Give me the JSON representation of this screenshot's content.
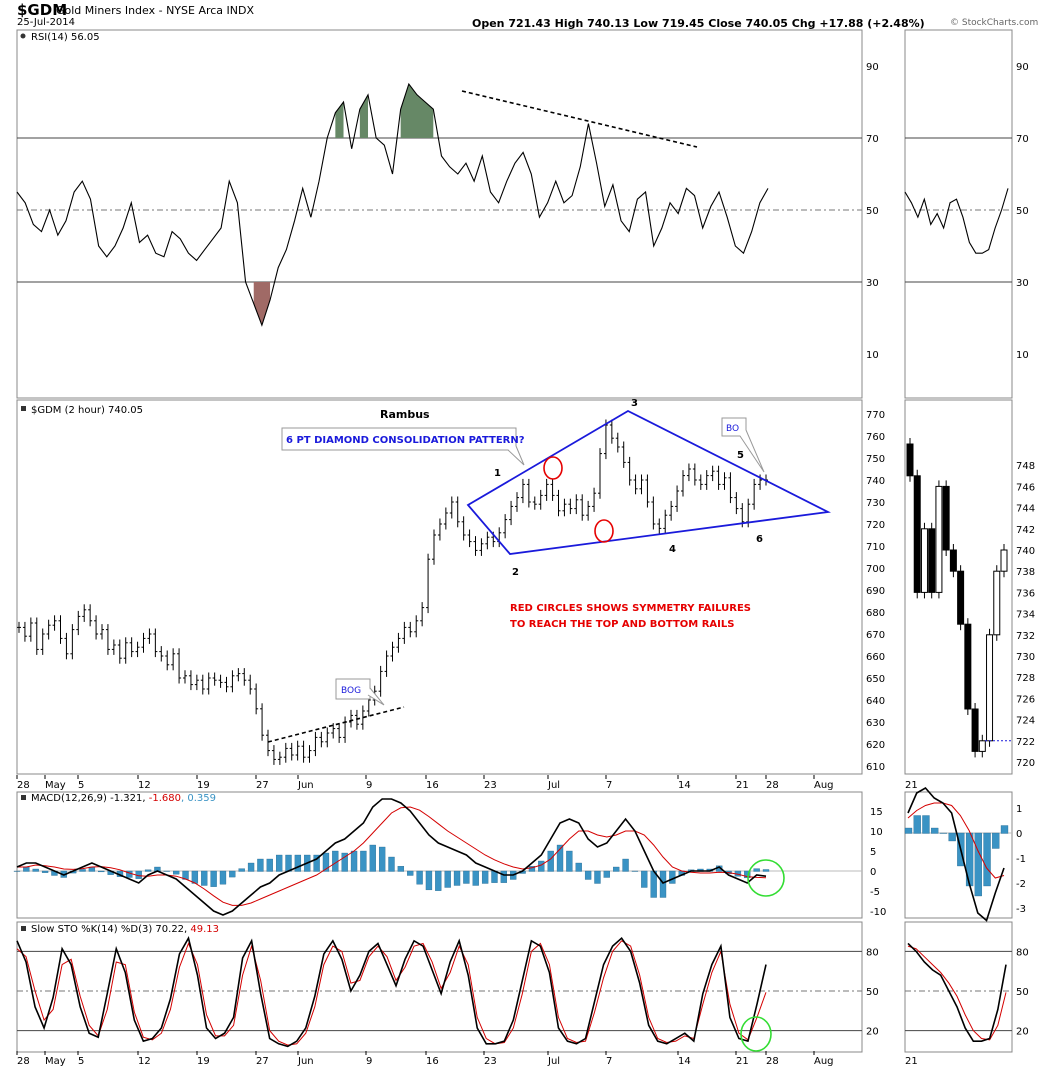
{
  "header": {
    "symbol": "$GDM",
    "name": "Gold Miners Index - NYSE Arca INDX",
    "date": "25-Jul-2014",
    "ohlc": "Open 721.43   High 740.13   Low 719.45   Close 740.05   Chg +17.88 (+2.48%)",
    "watermark": "© StockCharts.com"
  },
  "chart_data": {
    "type": "line",
    "x_ticks": [
      "28",
      "May",
      "5",
      "12",
      "19",
      "27",
      "Jun",
      "9",
      "16",
      "23",
      "Jul",
      "7",
      "14",
      "21",
      "28",
      "Aug"
    ],
    "x_ticks_right": [
      "21"
    ],
    "rsi": {
      "label": "RSI(14) 56.05",
      "y_ticks": [
        90,
        70,
        50,
        30,
        10
      ],
      "values": [
        55,
        52,
        46,
        44,
        50,
        43,
        47,
        55,
        58,
        53,
        40,
        37,
        40,
        45,
        52,
        41,
        43,
        38,
        37,
        44,
        42,
        38,
        36,
        39,
        42,
        45,
        58,
        52,
        30,
        24,
        18,
        25,
        34,
        39,
        47,
        56,
        48,
        58,
        70,
        77,
        80,
        67,
        78,
        82,
        70,
        68,
        60,
        78,
        85,
        82,
        80,
        78,
        65,
        62,
        60,
        63,
        58,
        65,
        55,
        52,
        58,
        63,
        66,
        60,
        48,
        52,
        58,
        52,
        54,
        62,
        74,
        63,
        51,
        57,
        47,
        44,
        53,
        55,
        40,
        45,
        52,
        49,
        56,
        54,
        45,
        51,
        55,
        48,
        40,
        38,
        44,
        52,
        56
      ],
      "right_values": [
        55,
        52,
        48,
        53,
        46,
        49,
        45,
        52,
        53,
        48,
        41,
        38,
        38,
        39,
        45,
        50,
        56
      ]
    },
    "price": {
      "label": "$GDM (2 hour) 740.05",
      "y_ticks": [
        770,
        760,
        750,
        740,
        730,
        720,
        710,
        700,
        690,
        680,
        670,
        660,
        650,
        640,
        630,
        620,
        610
      ],
      "close": [
        673,
        669,
        675,
        663,
        670,
        674,
        676,
        668,
        661,
        672,
        678,
        681,
        676,
        670,
        672,
        663,
        665,
        659,
        666,
        662,
        664,
        668,
        670,
        662,
        660,
        656,
        661,
        650,
        651,
        647,
        649,
        645,
        650,
        649,
        648,
        646,
        651,
        652,
        649,
        645,
        636,
        624,
        617,
        613,
        614,
        618,
        615,
        619,
        614,
        617,
        623,
        621,
        625,
        627,
        623,
        630,
        633,
        629,
        635,
        640,
        644,
        653,
        660,
        664,
        668,
        673,
        671,
        676,
        682,
        704,
        715,
        720,
        725,
        730,
        721,
        715,
        712,
        708,
        711,
        714,
        712,
        716,
        722,
        728,
        732,
        738,
        730,
        729,
        733,
        738,
        733,
        726,
        729,
        727,
        731,
        724,
        728,
        734,
        752,
        765,
        759,
        755,
        748,
        740,
        736,
        740,
        730,
        720,
        718,
        724,
        728,
        735,
        742,
        745,
        740,
        738,
        742,
        744,
        738,
        741,
        732,
        727,
        721,
        729,
        738,
        740,
        740
      ],
      "right_values": [
        747,
        736,
        742,
        736,
        746,
        740,
        738,
        733,
        725,
        721,
        722,
        732,
        738,
        740
      ],
      "right_y_ticks": [
        748,
        746,
        744,
        742,
        740,
        738,
        736,
        734,
        732,
        730,
        728,
        726,
        724,
        722,
        720
      ]
    },
    "macd": {
      "label": "MACD(12,26,9) -1.321, -1.680, 0.359",
      "label_parts": [
        "MACD(12,26,9) -1.321, ",
        "-1.680",
        ", 0.359"
      ],
      "y_ticks": [
        15,
        10,
        5,
        0,
        -5,
        -10
      ],
      "right_y_ticks": [
        1,
        0,
        -1,
        -2,
        -3
      ],
      "macd": [
        1,
        2,
        2,
        1,
        0,
        -1,
        0,
        1,
        2,
        1,
        0,
        -1,
        -2,
        -3,
        -1,
        0,
        -1,
        -2,
        -4,
        -6,
        -8,
        -10,
        -11,
        -10,
        -8,
        -6,
        -4,
        -3,
        -1,
        0,
        1,
        2,
        3,
        5,
        7,
        8,
        10,
        12,
        16,
        18,
        18,
        17,
        15,
        12,
        9,
        7,
        6,
        5,
        4,
        2,
        1,
        0,
        -1,
        -1,
        0,
        2,
        4,
        8,
        12,
        13,
        12,
        8,
        6,
        7,
        10,
        13,
        10,
        5,
        0,
        -3,
        -2,
        -1,
        0,
        0,
        0,
        1,
        -1,
        -2,
        -3,
        -1,
        -1.3
      ],
      "signal": [
        1,
        1,
        1.5,
        1.3,
        1,
        0.5,
        0.4,
        0.6,
        1,
        1.1,
        0.8,
        0.3,
        -0.5,
        -1.2,
        -1.3,
        -1,
        -1,
        -1.3,
        -2,
        -3,
        -4.5,
        -6.2,
        -7.8,
        -8.6,
        -8.6,
        -8,
        -7,
        -6,
        -5,
        -4,
        -3,
        -2,
        -1,
        0.5,
        2,
        3.5,
        5,
        7,
        9.5,
        12,
        14.5,
        15.8,
        16,
        15.2,
        13.6,
        11.8,
        10,
        8.5,
        7,
        5.5,
        4,
        2.8,
        1.8,
        1,
        0.5,
        0.8,
        1.5,
        3,
        5.5,
        8,
        10,
        10,
        9,
        8.5,
        9,
        10,
        10,
        9,
        6.5,
        3.5,
        1,
        0,
        -0.3,
        -0.5,
        -0.5,
        -0.3,
        -0.4,
        -0.8,
        -1.4,
        -1.6,
        -1.68
      ],
      "right_macd": [
        0.8,
        1.6,
        1.8,
        1.4,
        1.2,
        0.8,
        -0.6,
        -2,
        -3.2,
        -3.5,
        -2.4,
        -1.4
      ],
      "right_signal": [
        0.6,
        0.9,
        1.1,
        1.2,
        1.2,
        1.1,
        0.7,
        0.1,
        -0.7,
        -1.4,
        -1.8,
        -1.7
      ]
    },
    "sto": {
      "label": "Slow STO %K(14) %D(3) 70.22, 49.13",
      "label_parts": [
        "Slow STO %K(14) %D(3) 70.22, ",
        "49.13"
      ],
      "y_ticks": [
        80,
        50,
        20
      ],
      "k": [
        88,
        72,
        38,
        22,
        45,
        82,
        70,
        38,
        18,
        15,
        48,
        82,
        64,
        28,
        12,
        14,
        22,
        44,
        78,
        90,
        62,
        22,
        14,
        18,
        30,
        75,
        88,
        48,
        14,
        10,
        8,
        12,
        22,
        46,
        78,
        88,
        74,
        50,
        62,
        80,
        86,
        70,
        54,
        74,
        88,
        84,
        66,
        48,
        72,
        88,
        62,
        22,
        10,
        10,
        12,
        28,
        58,
        88,
        84,
        64,
        22,
        12,
        10,
        14,
        42,
        70,
        84,
        90,
        80,
        56,
        24,
        12,
        10,
        14,
        18,
        12,
        48,
        70,
        84,
        30,
        14,
        12,
        40,
        70
      ],
      "d": [
        82,
        76,
        50,
        28,
        36,
        70,
        74,
        46,
        24,
        16,
        36,
        72,
        70,
        34,
        15,
        13,
        18,
        36,
        68,
        86,
        70,
        32,
        16,
        16,
        24,
        62,
        84,
        58,
        20,
        12,
        9,
        10,
        18,
        38,
        70,
        84,
        80,
        56,
        58,
        76,
        84,
        76,
        58,
        68,
        84,
        86,
        72,
        52,
        64,
        84,
        70,
        30,
        14,
        10,
        11,
        22,
        48,
        80,
        86,
        70,
        30,
        14,
        11,
        12,
        34,
        60,
        80,
        88,
        84,
        62,
        30,
        14,
        11,
        12,
        16,
        14,
        40,
        64,
        80,
        40,
        18,
        13,
        30,
        49
      ],
      "right_k": [
        86,
        80,
        72,
        66,
        62,
        50,
        38,
        22,
        12,
        12,
        14,
        36,
        70
      ],
      "right_d": [
        84,
        82,
        76,
        70,
        64,
        56,
        46,
        32,
        20,
        14,
        13,
        24,
        49
      ]
    },
    "annotations": {
      "rambus": "Rambus",
      "pattern_title": "6 PT DIAMOND CONSOLIDATION PATTERN?",
      "bo": "BO",
      "bog": "BOG",
      "red_text_1": "RED CIRCLES SHOWS SYMMETRY FAILURES",
      "red_text_2": "TO REACH THE TOP AND BOTTOM RAILS",
      "points": [
        "1",
        "2",
        "3",
        "4",
        "5",
        "6"
      ]
    }
  },
  "colors": {
    "line": "#000000",
    "signal": "#d40000",
    "histogram": "#3a93c4",
    "rsi_high_fill": "#668866",
    "rsi_low_fill": "#a06a66",
    "diamond": "#1a1adb",
    "annotation_red": "#e60000",
    "circle_green": "#33dd33"
  }
}
